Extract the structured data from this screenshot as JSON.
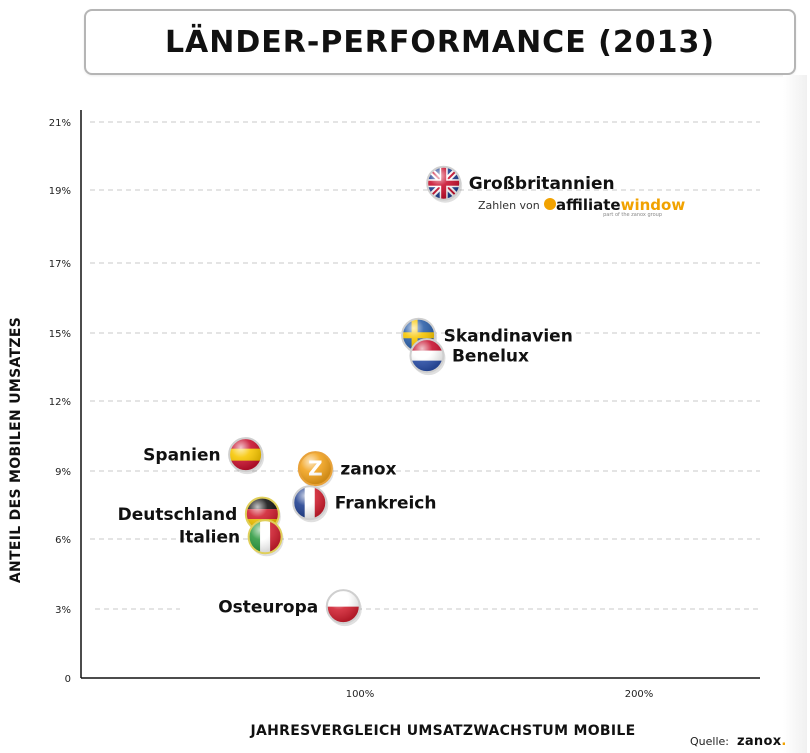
{
  "title": "LÄNDER-PERFORMANCE (2013)",
  "chart_data": {
    "type": "scatter",
    "xlabel": "JAHRESVERGLEICH UMSATZWACHSTUM MOBILE",
    "ylabel": "ANTEIL DES MOBILEN UMSATZES",
    "xlim": [
      0,
      250
    ],
    "ylim": [
      0,
      21
    ],
    "y_ticks": [
      {
        "value": 0,
        "label": "0"
      },
      {
        "value": 3,
        "label": "3%"
      },
      {
        "value": 6,
        "label": "6%"
      },
      {
        "value": 9,
        "label": "9%"
      },
      {
        "value": 12,
        "label": "12%"
      },
      {
        "value": 15,
        "label": "15%"
      },
      {
        "value": 17,
        "label": "17%"
      },
      {
        "value": 19,
        "label": "19%"
      },
      {
        "value": 21,
        "label": "21%"
      }
    ],
    "x_ticks": [
      {
        "value": 100,
        "label": "100%"
      },
      {
        "value": 200,
        "label": "200%"
      }
    ],
    "grid": true,
    "points": [
      {
        "label": "Großbritannien",
        "x": 130,
        "y": 19.2,
        "flag": "uk-flag",
        "label_side": "right"
      },
      {
        "label": "Skandinavien",
        "x": 121,
        "y": 14.9,
        "flag": "sweden-flag",
        "label_side": "right"
      },
      {
        "label": "Benelux",
        "x": 124,
        "y": 14.0,
        "flag": "netherlands-flag",
        "label_side": "right"
      },
      {
        "label": "Spanien",
        "x": 59,
        "y": 9.7,
        "flag": "spain-flag",
        "label_side": "left"
      },
      {
        "label": "zanox",
        "x": 84,
        "y": 9.1,
        "flag": "zanox-logo",
        "label_side": "right"
      },
      {
        "label": "Frankreich",
        "x": 82,
        "y": 7.6,
        "flag": "france-flag",
        "label_side": "right"
      },
      {
        "label": "Deutschland",
        "x": 65,
        "y": 7.1,
        "flag": "germany-flag",
        "label_side": "left"
      },
      {
        "label": "Italien",
        "x": 66,
        "y": 6.1,
        "flag": "italy-flag",
        "label_side": "left"
      },
      {
        "label": "Osteuropa",
        "x": 94,
        "y": 3.1,
        "flag": "poland-flag",
        "label_side": "left"
      }
    ],
    "annotation": {
      "text": "Zahlen von",
      "logo_part1": "affiliate",
      "logo_part2": "window",
      "logo_tagline": "part of the zanox group",
      "logo_color": "#f1a200"
    }
  },
  "source": {
    "label": "Quelle:",
    "brand": "zanox",
    "brand_dot": ".",
    "brand_dot_color": "#f1a200"
  }
}
